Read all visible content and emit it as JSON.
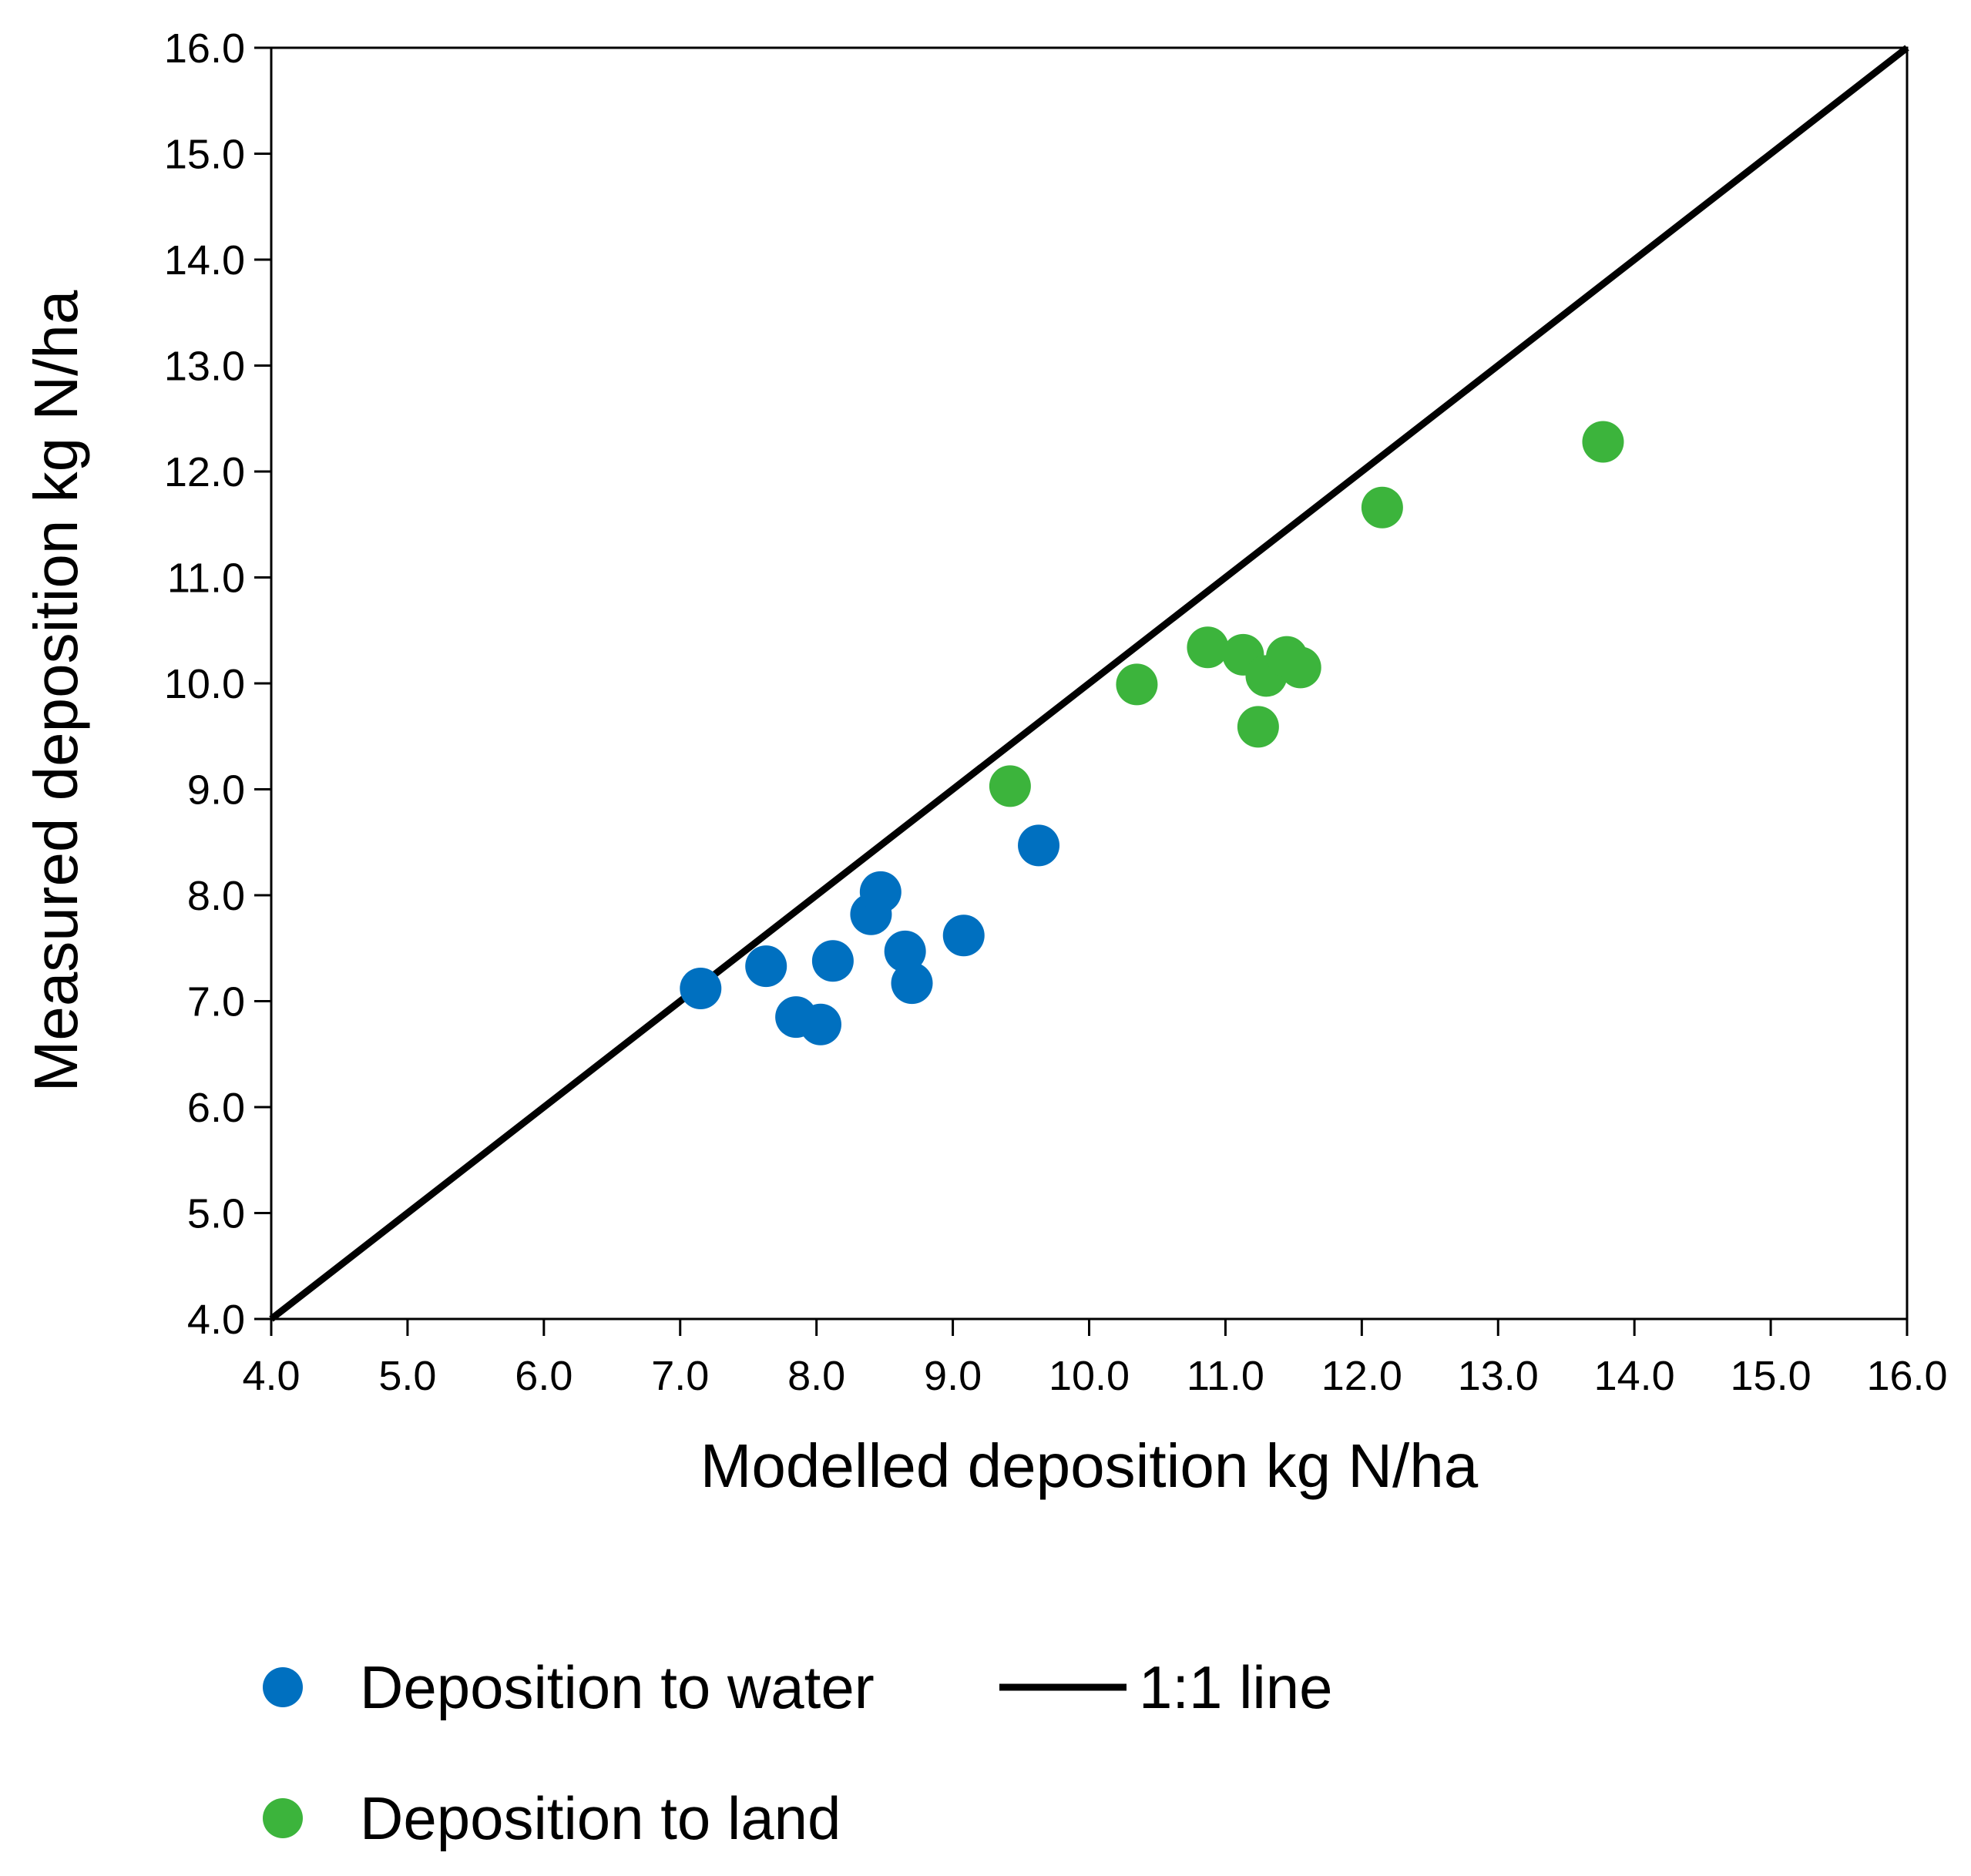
{
  "chart_data": {
    "type": "scatter",
    "title": "",
    "xlabel": "Modelled deposition kg N/ha",
    "ylabel": "Measured deposition  kg N/ha",
    "xlim": [
      4.0,
      16.0
    ],
    "ylim": [
      4.0,
      16.0
    ],
    "xticks": [
      "4.0",
      "5.0",
      "6.0",
      "7.0",
      "8.0",
      "9.0",
      "10.0",
      "11.0",
      "12.0",
      "13.0",
      "14.0",
      "15.0",
      "16.0"
    ],
    "yticks": [
      "4.0",
      "5.0",
      "6.0",
      "7.0",
      "8.0",
      "9.0",
      "10.0",
      "11.0",
      "12.0",
      "13.0",
      "14.0",
      "15.0",
      "16.0"
    ],
    "grid": false,
    "legend_position": "bottom",
    "series": [
      {
        "name": "Deposition to water",
        "color": "#0070C0",
        "marker": "circle",
        "points": [
          {
            "x": 7.15,
            "y": 7.12
          },
          {
            "x": 7.63,
            "y": 7.33
          },
          {
            "x": 7.85,
            "y": 6.85
          },
          {
            "x": 8.03,
            "y": 6.78
          },
          {
            "x": 8.12,
            "y": 7.38
          },
          {
            "x": 8.4,
            "y": 7.82
          },
          {
            "x": 8.47,
            "y": 8.03
          },
          {
            "x": 8.65,
            "y": 7.47
          },
          {
            "x": 8.7,
            "y": 7.17
          },
          {
            "x": 9.08,
            "y": 7.62
          },
          {
            "x": 9.63,
            "y": 8.47
          }
        ]
      },
      {
        "name": "Deposition to land",
        "color": "#3CB43C",
        "marker": "circle",
        "points": [
          {
            "x": 9.42,
            "y": 9.03
          },
          {
            "x": 10.35,
            "y": 9.99
          },
          {
            "x": 10.87,
            "y": 10.34
          },
          {
            "x": 11.13,
            "y": 10.27
          },
          {
            "x": 11.24,
            "y": 9.59
          },
          {
            "x": 11.3,
            "y": 10.07
          },
          {
            "x": 11.45,
            "y": 10.25
          },
          {
            "x": 11.55,
            "y": 10.15
          },
          {
            "x": 12.15,
            "y": 11.66
          },
          {
            "x": 13.77,
            "y": 12.28
          }
        ]
      },
      {
        "name": "1:1 line",
        "color": "#000000",
        "marker": "line",
        "points": [
          {
            "x": 4.0,
            "y": 4.0
          },
          {
            "x": 16.0,
            "y": 16.0
          }
        ]
      }
    ]
  }
}
